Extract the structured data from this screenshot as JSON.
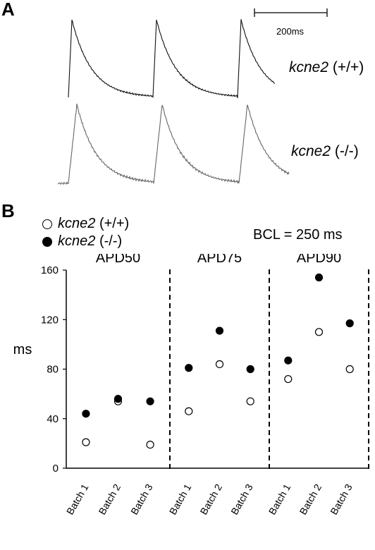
{
  "panel_a": {
    "letter": "A",
    "scale_bar_label": "200ms",
    "trace_labels": [
      {
        "gene": "kcne2",
        "genotype": "(+/+)"
      },
      {
        "gene": "kcne2",
        "genotype": "(-/-)"
      }
    ]
  },
  "panel_b": {
    "letter": "B",
    "legend": [
      {
        "gene": "kcne2",
        "genotype": "(+/+)",
        "symbol": "open-circle"
      },
      {
        "gene": "kcne2",
        "genotype": "(-/-)",
        "symbol": "filled-circle"
      }
    ],
    "bcl_label": "BCL = 250 ms"
  },
  "chart_data": {
    "type": "scatter",
    "ylabel": "ms",
    "ylim": [
      0,
      160
    ],
    "yticks": [
      0,
      40,
      80,
      120,
      160
    ],
    "groups": [
      {
        "name": "APD50",
        "categories": [
          "Batch 1",
          "Batch 2",
          "Batch 3"
        ]
      },
      {
        "name": "APD75",
        "categories": [
          "Batch 1",
          "Batch 2",
          "Batch 3"
        ]
      },
      {
        "name": "APD90",
        "categories": [
          "Batch 1",
          "Batch 2",
          "Batch 3"
        ]
      }
    ],
    "series": [
      {
        "name": "kcne2 (+/+)",
        "marker": "open",
        "values": [
          [
            21,
            54,
            19
          ],
          [
            46,
            84,
            54
          ],
          [
            72,
            110,
            80
          ]
        ]
      },
      {
        "name": "kcne2 (-/-)",
        "marker": "filled",
        "values": [
          [
            44,
            56,
            54
          ],
          [
            81,
            111,
            80
          ],
          [
            87,
            154,
            117
          ]
        ]
      }
    ],
    "group_separators": "dashed",
    "grid": false
  }
}
